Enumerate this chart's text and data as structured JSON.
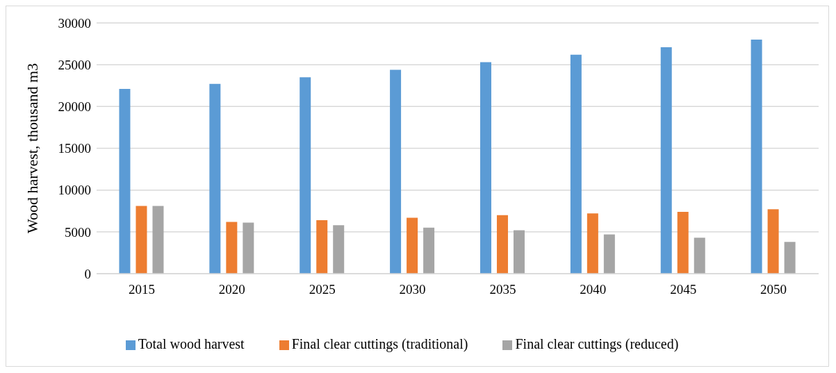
{
  "chart_data": {
    "type": "bar",
    "ylabel": "Wood harvest, thousand m3",
    "categories": [
      "2015",
      "2020",
      "2025",
      "2030",
      "2035",
      "2040",
      "2045",
      "2050"
    ],
    "series": [
      {
        "name": "Total wood harvest",
        "color": "#5b9bd5",
        "values": [
          22100,
          22700,
          23500,
          24400,
          25300,
          26200,
          27100,
          28000
        ]
      },
      {
        "name": "Final clear cuttings (traditional)",
        "color": "#ed7d31",
        "values": [
          8100,
          6200,
          6400,
          6700,
          7000,
          7200,
          7400,
          7700
        ]
      },
      {
        "name": "Final clear cuttings (reduced)",
        "color": "#a5a5a5",
        "values": [
          8100,
          6100,
          5800,
          5500,
          5200,
          4700,
          4300,
          3800
        ]
      }
    ],
    "ylim": [
      0,
      30000
    ],
    "yticks": [
      0,
      5000,
      10000,
      15000,
      20000,
      25000,
      30000
    ],
    "grid": "y",
    "legend": "bottom"
  }
}
